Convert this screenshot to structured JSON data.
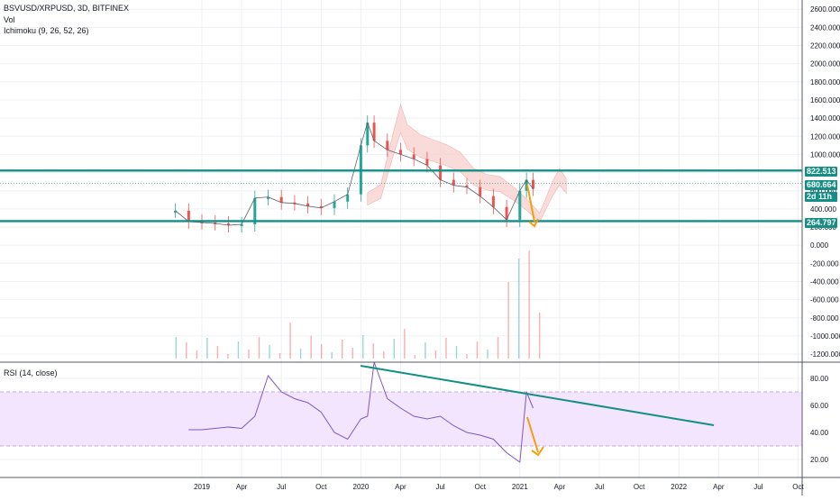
{
  "header": {
    "symbol": "BSVUSD/XRPUSD, 3D, BITFINEX",
    "vol_label": "Vol",
    "ichimoku_label": "Ichimoku (9, 26, 52, 26)",
    "rsi_label": "RSI (14, close)"
  },
  "colors": {
    "teal": "#138f86",
    "orange": "#f59e0b",
    "up": "#26a69a",
    "down": "#ef5350",
    "rsi_line": "#7e57c2",
    "rsi_band": "#f3e5fd",
    "cloud_bull": "#d8efe0",
    "cloud_bear": "#f8d3d0",
    "baseline": "#b71c1c",
    "conversion": "#2962ff"
  },
  "price_tags": [
    {
      "label": "822.513",
      "value": 822.513,
      "color": "#138f86"
    },
    {
      "label": "680.664",
      "value": 680.664,
      "color": "#138f86"
    },
    {
      "label": "2d 11h",
      "value": 590,
      "color": "#138f86"
    },
    {
      "label": "264.797",
      "value": 264.797,
      "color": "#138f86"
    }
  ],
  "price_axis_ticks": [
    "2600.000",
    "2400.000",
    "2200.000",
    "2000.000",
    "1800.000",
    "1600.000",
    "1400.000",
    "1200.000",
    "1000.000",
    "800.000",
    "600.000",
    "400.000",
    "200.000",
    "0.000",
    "-200.000",
    "-400.000",
    "-600.000",
    "-800.000",
    "-1000.000",
    "-1200.000"
  ],
  "rsi_axis_ticks": [
    "80.00",
    "60.00",
    "40.00",
    "20.00"
  ],
  "time_axis_ticks": [
    "2019",
    "Apr",
    "Jul",
    "Oct",
    "2020",
    "Apr",
    "Jul",
    "Oct",
    "2021",
    "Apr",
    "Jul",
    "Oct",
    "2022",
    "Apr",
    "Jul",
    "Oct"
  ],
  "chart_data": [
    {
      "type": "line",
      "title": "BSVUSD/XRPUSD, 3D, BITFINEX",
      "series": [
        {
          "name": "BSVUSD/XRPUSD",
          "x": [
            "2018-11",
            "2018-12",
            "2019-01",
            "2019-02",
            "2019-03",
            "2019-04",
            "2019-05",
            "2019-06",
            "2019-07",
            "2019-08",
            "2019-09",
            "2019-10",
            "2019-11",
            "2019-12",
            "2020-01",
            "2020-01",
            "2020-02",
            "2020-03",
            "2020-04",
            "2020-05",
            "2020-06",
            "2020-07",
            "2020-08",
            "2020-09",
            "2020-10",
            "2020-11",
            "2020-12",
            "2021-01",
            "2021-01",
            "2021-02"
          ],
          "y": [
            380,
            260,
            250,
            240,
            220,
            230,
            520,
            530,
            470,
            460,
            430,
            410,
            480,
            560,
            1100,
            1350,
            1150,
            1050,
            1000,
            950,
            880,
            720,
            660,
            640,
            540,
            420,
            280,
            600,
            720,
            620
          ]
        }
      ],
      "horizontal_levels": [
        822.513,
        264.797
      ],
      "ylim": [
        -1200,
        2600
      ]
    },
    {
      "type": "bar",
      "title": "Vol",
      "note": "volume histogram"
    },
    {
      "type": "line",
      "title": "RSI (14, close)",
      "series": [
        {
          "name": "RSI (14, close)",
          "x": [
            "2018-12",
            "2019-01",
            "2019-02",
            "2019-03",
            "2019-04",
            "2019-05",
            "2019-06",
            "2019-07",
            "2019-08",
            "2019-09",
            "2019-10",
            "2019-11",
            "2019-12",
            "2020-01",
            "2020-01",
            "2020-02",
            "2020-03",
            "2020-04",
            "2020-05",
            "2020-06",
            "2020-07",
            "2020-08",
            "2020-09",
            "2020-10",
            "2020-11",
            "2020-12",
            "2021-01",
            "2021-01",
            "2021-02"
          ],
          "y": [
            42,
            42,
            43,
            44,
            43,
            52,
            82,
            70,
            65,
            62,
            55,
            40,
            35,
            50,
            52,
            92,
            65,
            58,
            52,
            50,
            52,
            45,
            40,
            38,
            35,
            25,
            18,
            70,
            58
          ]
        }
      ],
      "bands": [
        70,
        30
      ],
      "ylim": [
        10,
        95
      ]
    }
  ]
}
